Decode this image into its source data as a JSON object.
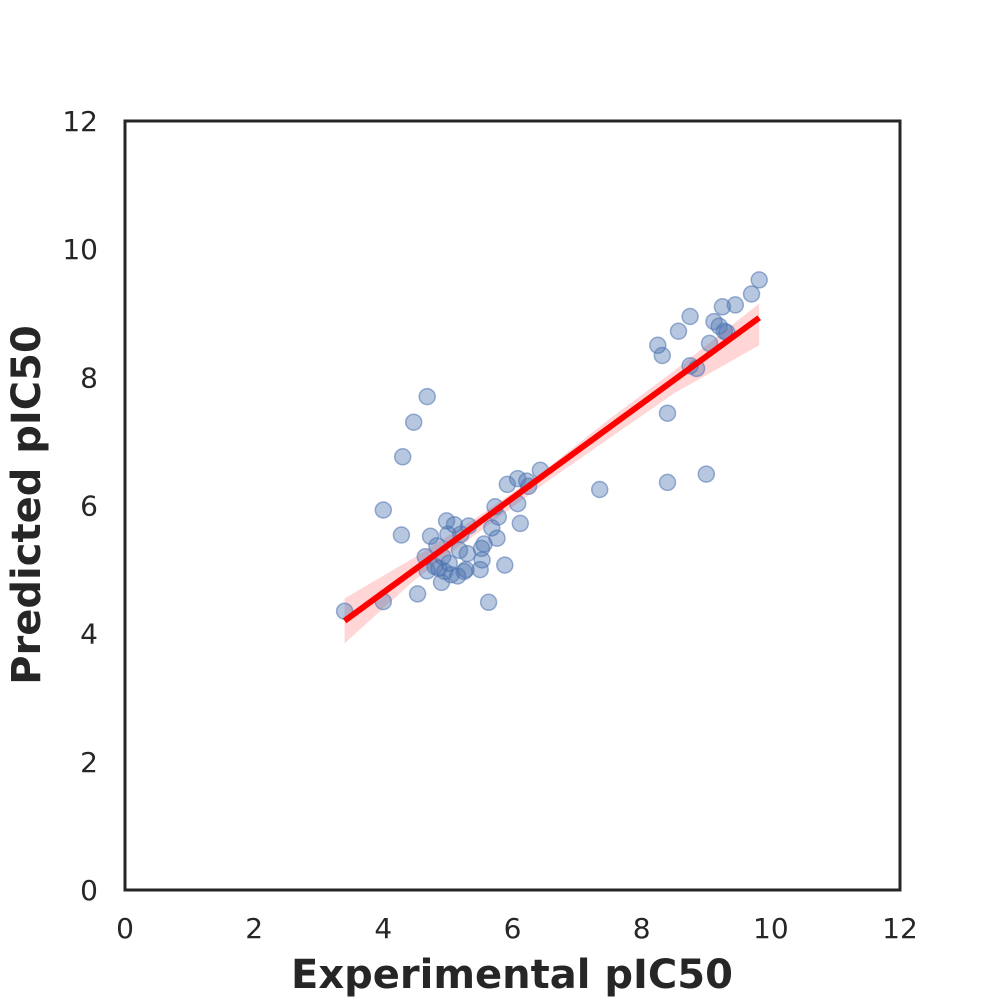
{
  "chart_data": {
    "type": "scatter",
    "title": "",
    "xlabel": "Experimental pIC50",
    "ylabel": "Predicted pIC50",
    "xlim": [
      0,
      12
    ],
    "ylim": [
      0,
      12
    ],
    "x_ticks": [
      "0",
      "2",
      "4",
      "6",
      "8",
      "10",
      "12"
    ],
    "y_ticks": [
      "0",
      "2",
      "4",
      "6",
      "8",
      "10",
      "12"
    ],
    "grid": false,
    "colors": {
      "points": "#4c72b0",
      "regression_line": "#ff0000",
      "confidence_band": "#ffb3b3",
      "frame": "#262626"
    },
    "points": [
      {
        "x": 3.4,
        "y": 4.35
      },
      {
        "x": 4.0,
        "y": 4.5
      },
      {
        "x": 4.0,
        "y": 5.93
      },
      {
        "x": 4.28,
        "y": 5.54
      },
      {
        "x": 4.3,
        "y": 6.76
      },
      {
        "x": 4.47,
        "y": 7.3
      },
      {
        "x": 4.53,
        "y": 4.62
      },
      {
        "x": 4.68,
        "y": 7.7
      },
      {
        "x": 4.65,
        "y": 5.2
      },
      {
        "x": 4.68,
        "y": 4.98
      },
      {
        "x": 4.73,
        "y": 5.52
      },
      {
        "x": 4.8,
        "y": 5.05
      },
      {
        "x": 4.83,
        "y": 5.37
      },
      {
        "x": 4.86,
        "y": 5.02
      },
      {
        "x": 4.9,
        "y": 4.8
      },
      {
        "x": 4.92,
        "y": 5.2
      },
      {
        "x": 4.95,
        "y": 4.97
      },
      {
        "x": 4.98,
        "y": 5.76
      },
      {
        "x": 5.0,
        "y": 5.55
      },
      {
        "x": 5.02,
        "y": 5.1
      },
      {
        "x": 5.05,
        "y": 4.92
      },
      {
        "x": 5.1,
        "y": 5.7
      },
      {
        "x": 5.15,
        "y": 4.9
      },
      {
        "x": 5.18,
        "y": 5.3
      },
      {
        "x": 5.2,
        "y": 5.55
      },
      {
        "x": 5.25,
        "y": 4.97
      },
      {
        "x": 5.28,
        "y": 5.0
      },
      {
        "x": 5.3,
        "y": 5.25
      },
      {
        "x": 5.32,
        "y": 5.68
      },
      {
        "x": 5.5,
        "y": 5.0
      },
      {
        "x": 5.52,
        "y": 5.33
      },
      {
        "x": 5.53,
        "y": 5.15
      },
      {
        "x": 5.56,
        "y": 5.4
      },
      {
        "x": 5.63,
        "y": 4.49
      },
      {
        "x": 5.68,
        "y": 5.65
      },
      {
        "x": 5.73,
        "y": 5.98
      },
      {
        "x": 5.76,
        "y": 5.49
      },
      {
        "x": 5.78,
        "y": 5.82
      },
      {
        "x": 5.88,
        "y": 5.07
      },
      {
        "x": 5.92,
        "y": 6.33
      },
      {
        "x": 6.08,
        "y": 6.03
      },
      {
        "x": 6.08,
        "y": 6.42
      },
      {
        "x": 6.12,
        "y": 5.72
      },
      {
        "x": 6.22,
        "y": 6.38
      },
      {
        "x": 6.25,
        "y": 6.3
      },
      {
        "x": 6.43,
        "y": 6.55
      },
      {
        "x": 7.35,
        "y": 6.25
      },
      {
        "x": 8.25,
        "y": 8.5
      },
      {
        "x": 8.32,
        "y": 8.34
      },
      {
        "x": 8.4,
        "y": 7.44
      },
      {
        "x": 8.4,
        "y": 6.36
      },
      {
        "x": 8.57,
        "y": 8.72
      },
      {
        "x": 8.75,
        "y": 8.95
      },
      {
        "x": 8.75,
        "y": 8.18
      },
      {
        "x": 8.85,
        "y": 8.14
      },
      {
        "x": 9.0,
        "y": 6.49
      },
      {
        "x": 9.05,
        "y": 8.53
      },
      {
        "x": 9.12,
        "y": 8.87
      },
      {
        "x": 9.2,
        "y": 8.8
      },
      {
        "x": 9.25,
        "y": 9.1
      },
      {
        "x": 9.28,
        "y": 8.72
      },
      {
        "x": 9.32,
        "y": 8.7
      },
      {
        "x": 9.45,
        "y": 9.13
      },
      {
        "x": 9.7,
        "y": 9.3
      },
      {
        "x": 9.82,
        "y": 9.52
      }
    ],
    "regression_line": {
      "x": [
        3.4,
        9.82
      ],
      "y": [
        4.2,
        8.93
      ]
    },
    "confidence_band": {
      "x": [
        3.4,
        4.5,
        5.5,
        6.5,
        7.5,
        8.5,
        9.82
      ],
      "lower": [
        3.85,
        4.85,
        5.6,
        6.35,
        7.05,
        7.75,
        8.5
      ],
      "upper": [
        4.55,
        5.2,
        5.85,
        6.55,
        7.35,
        8.1,
        9.15
      ]
    }
  }
}
